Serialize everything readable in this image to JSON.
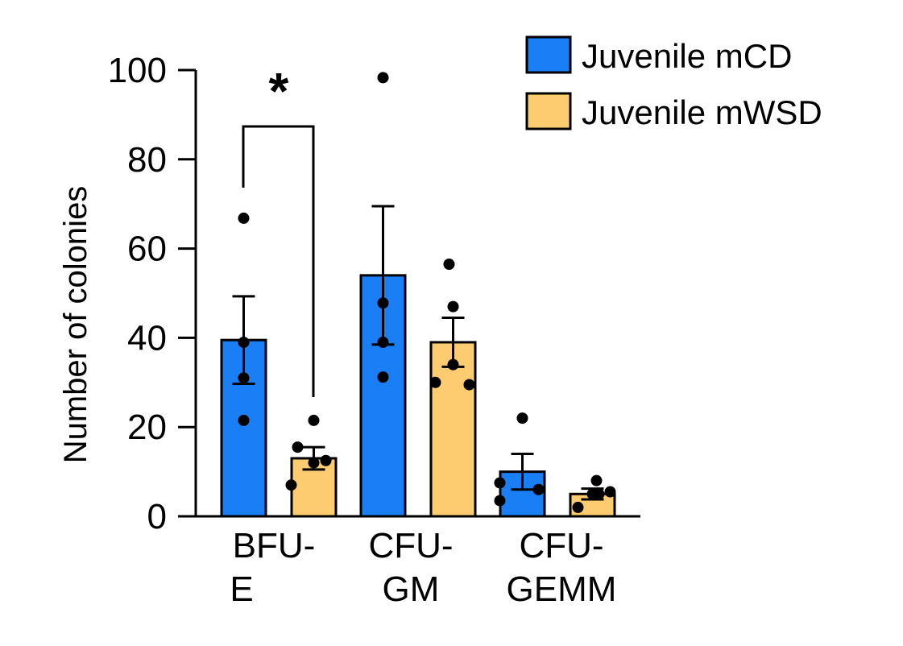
{
  "chart_data": {
    "type": "bar",
    "title": "",
    "xlabel": "",
    "ylabel": "Number of colonies",
    "ylim": [
      0,
      100
    ],
    "yticks": [
      0,
      20,
      40,
      60,
      80,
      100
    ],
    "categories": [
      {
        "lines": [
          "BFU-",
          "E"
        ]
      },
      {
        "lines": [
          "CFU-",
          "GM"
        ]
      },
      {
        "lines": [
          "CFU-",
          "GEMM"
        ]
      }
    ],
    "series": [
      {
        "name": "Juvenile mCD",
        "color": "#1a7ef5",
        "values": [
          39.5,
          54,
          10
        ],
        "errors": [
          9.8,
          15.5,
          4
        ],
        "points": [
          [
            66.8,
            39,
            31,
            21.5
          ],
          [
            98.3,
            47.8,
            39,
            31.2
          ],
          [
            22,
            7.5,
            6,
            3.5
          ]
        ]
      },
      {
        "name": "Juvenile mWSD",
        "color": "#fdcb70",
        "values": [
          13,
          39,
          5
        ],
        "errors": [
          2.5,
          5.5,
          1.2
        ],
        "points": [
          [
            21.5,
            15.5,
            12.5,
            12,
            7
          ],
          [
            56.5,
            47,
            34,
            30,
            29.5
          ],
          [
            8,
            5.5,
            5,
            5,
            2
          ]
        ]
      }
    ],
    "legend": {
      "position": "top-right"
    },
    "annotations": [
      {
        "text": "*",
        "between": [
          "BFU-E Juvenile mCD",
          "BFU-E Juvenile mWSD"
        ]
      }
    ],
    "grid": false
  }
}
